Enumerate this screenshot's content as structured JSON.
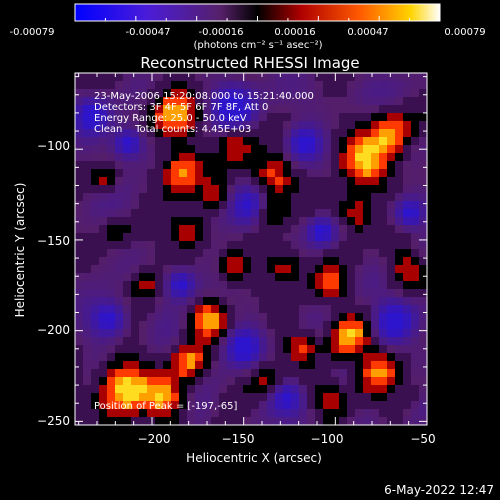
{
  "colorbar": {
    "ticks": [
      "-0.00079",
      "-0.00047",
      "-0.00016",
      "0.00016",
      "0.00047",
      "0.00079"
    ],
    "units": "(photons cm⁻² s⁻¹ asec⁻²)"
  },
  "title": "Reconstructed RHESSI Image",
  "annotations": {
    "line1": "23-May-2006 15:20:08.000 to 15:21:40.000",
    "line2": "Detectors: 3F 4F 5F 6F 7F 8F, Att 0",
    "line3": "Energy Range: 25.0 - 50.0 keV",
    "line4": "Clean    Total counts: 4.45E+03",
    "peak": "Position of Peak = [-197,-65]"
  },
  "axes": {
    "xlabel": "Heliocentric X (arcsec)",
    "ylabel": "Heliocentric Y (arcsec)",
    "xticks": [
      "−200",
      "−150",
      "−100",
      "−50"
    ],
    "yticks": [
      "−100",
      "−150",
      "−200",
      "−250"
    ],
    "xrange": [
      -242,
      -50
    ],
    "yrange": [
      -252,
      -58
    ]
  },
  "footer": {
    "date": "6-May-2022 12:47"
  },
  "colors": {
    "background": "#000000",
    "text": "#ffffff"
  }
}
